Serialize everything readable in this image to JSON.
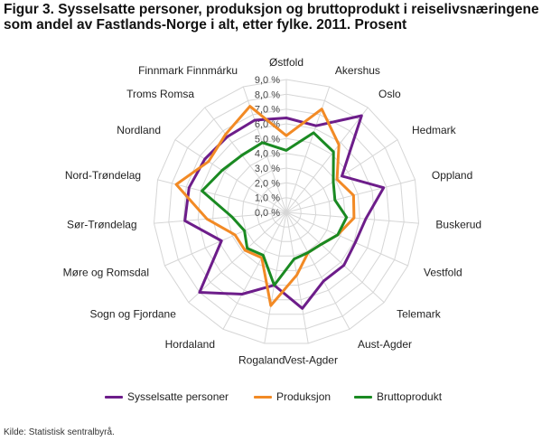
{
  "title_line1": "Figur 3. Sysselsatte personer, produksjon og bruttoprodukt i reiselivsnæringene",
  "title_line2": "som andel av Fastlands-Norge i alt, etter fylke. 2011. Prosent",
  "source": "Kilde: Statistisk sentralbyrå.",
  "chart_data": {
    "type": "radar",
    "categories": [
      "Østfold",
      "Akershus",
      "Oslo",
      "Hedmark",
      "Oppland",
      "Buskerud",
      "Vestfold",
      "Telemark",
      "Aust-Agder",
      "Vest-Agder",
      "Rogaland",
      "Hordaland",
      "Sogn og Fjordane",
      "Møre og Romsdal",
      "Sør-Trøndelag",
      "Nord-Trøndelag",
      "Nordland",
      "Troms Romsa",
      "Finnmark Finnmárku"
    ],
    "ticks": [
      "0,0 %",
      "1,0 %",
      "2,0 %",
      "3,0 %",
      "4,0 %",
      "5,0 %",
      "6,0 %",
      "7,0 %",
      "8,0 %",
      "9,0 %"
    ],
    "rmax": 9,
    "series": [
      {
        "name": "Sysselsatte personer",
        "color": "#6d1d8a",
        "values": [
          6.4,
          6.2,
          8.3,
          4.5,
          6.8,
          5.4,
          5.1,
          5.3,
          5.3,
          6.6,
          5.0,
          6.3,
          8.0,
          4.8,
          6.9,
          6.8,
          6.6,
          6.5,
          6.6
        ]
      },
      {
        "name": "Produksjon",
        "color": "#f28a25",
        "values": [
          5.2,
          7.4,
          5.8,
          4.1,
          4.7,
          4.6,
          3.8,
          3.2,
          3.1,
          4.3,
          6.4,
          3.5,
          3.8,
          3.8,
          5.4,
          7.7,
          6.3,
          6.7,
          7.6
        ]
      },
      {
        "name": "Bruttoprodukt",
        "color": "#1a8a22",
        "values": [
          4.2,
          5.7,
          5.2,
          3.8,
          3.4,
          4.1,
          3.8,
          3.2,
          3.1,
          3.2,
          5.0,
          3.3,
          3.6,
          3.1,
          3.7,
          5.9,
          5.2,
          4.9,
          5.0
        ]
      }
    ]
  }
}
